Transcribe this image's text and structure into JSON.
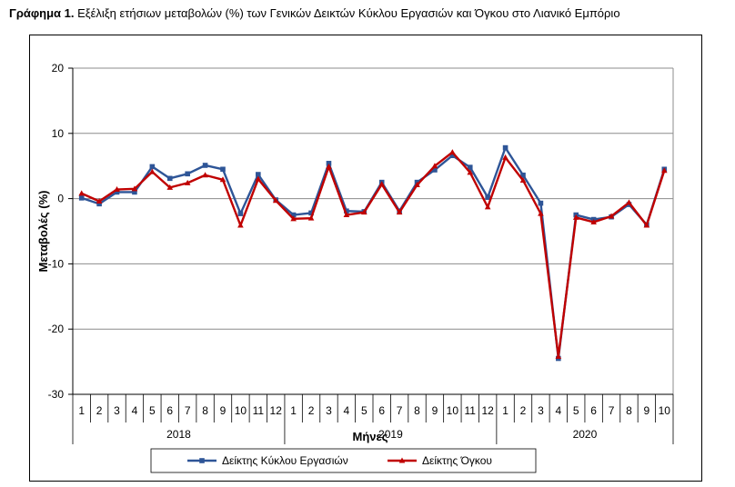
{
  "title": {
    "prefix": "Γράφημα 1.",
    "text": " Εξέλιξη ετήσιων μεταβολών (%) των Γενικών Δεικτών Κύκλου Εργασιών και Όγκου στο Λιανικό Εμπόριο"
  },
  "chart_data": {
    "type": "line",
    "ylabel": "Μεταβολές (%)",
    "xlabel": "Μήνες",
    "ylim": [
      -30,
      20
    ],
    "yticks": [
      20,
      10,
      0,
      -10,
      -20,
      -30
    ],
    "grid": true,
    "legend_position": "bottom",
    "months": [
      "1",
      "2",
      "3",
      "4",
      "5",
      "6",
      "7",
      "8",
      "9",
      "10",
      "11",
      "12",
      "1",
      "2",
      "3",
      "4",
      "5",
      "6",
      "7",
      "8",
      "9",
      "10",
      "11",
      "12",
      "1",
      "2",
      "3",
      "4",
      "5",
      "6",
      "7",
      "8",
      "9",
      "10"
    ],
    "years": [
      {
        "label": "2018",
        "start": 0,
        "count": 12
      },
      {
        "label": "2019",
        "start": 12,
        "count": 12
      },
      {
        "label": "2020",
        "start": 24,
        "count": 10
      }
    ],
    "series": [
      {
        "name": "Δείκτης Κύκλου Εργασιών",
        "color": "#2E5597",
        "marker": "square",
        "values": [
          0.1,
          -0.8,
          1.0,
          1.0,
          4.9,
          3.1,
          3.8,
          5.1,
          4.5,
          -2.3,
          3.7,
          -0.2,
          -2.5,
          -2.2,
          5.4,
          -1.9,
          -2.0,
          2.5,
          -1.9,
          2.5,
          4.4,
          6.6,
          4.8,
          0.2,
          7.8,
          3.6,
          -0.7,
          -24.5,
          -2.5,
          -3.2,
          -2.8,
          -0.9,
          -4.0,
          4.5
        ]
      },
      {
        "name": "Δείκτης Όγκου",
        "color": "#C00000",
        "marker": "triangle",
        "values": [
          0.8,
          -0.4,
          1.4,
          1.5,
          4.1,
          1.7,
          2.4,
          3.6,
          2.9,
          -4.1,
          3.0,
          -0.3,
          -3.1,
          -3.0,
          4.9,
          -2.5,
          -2.1,
          2.2,
          -2.1,
          2.1,
          5.0,
          7.1,
          4.0,
          -1.3,
          6.3,
          2.8,
          -2.3,
          -24.2,
          -2.9,
          -3.6,
          -2.7,
          -0.6,
          -4.1,
          4.3
        ]
      }
    ]
  }
}
